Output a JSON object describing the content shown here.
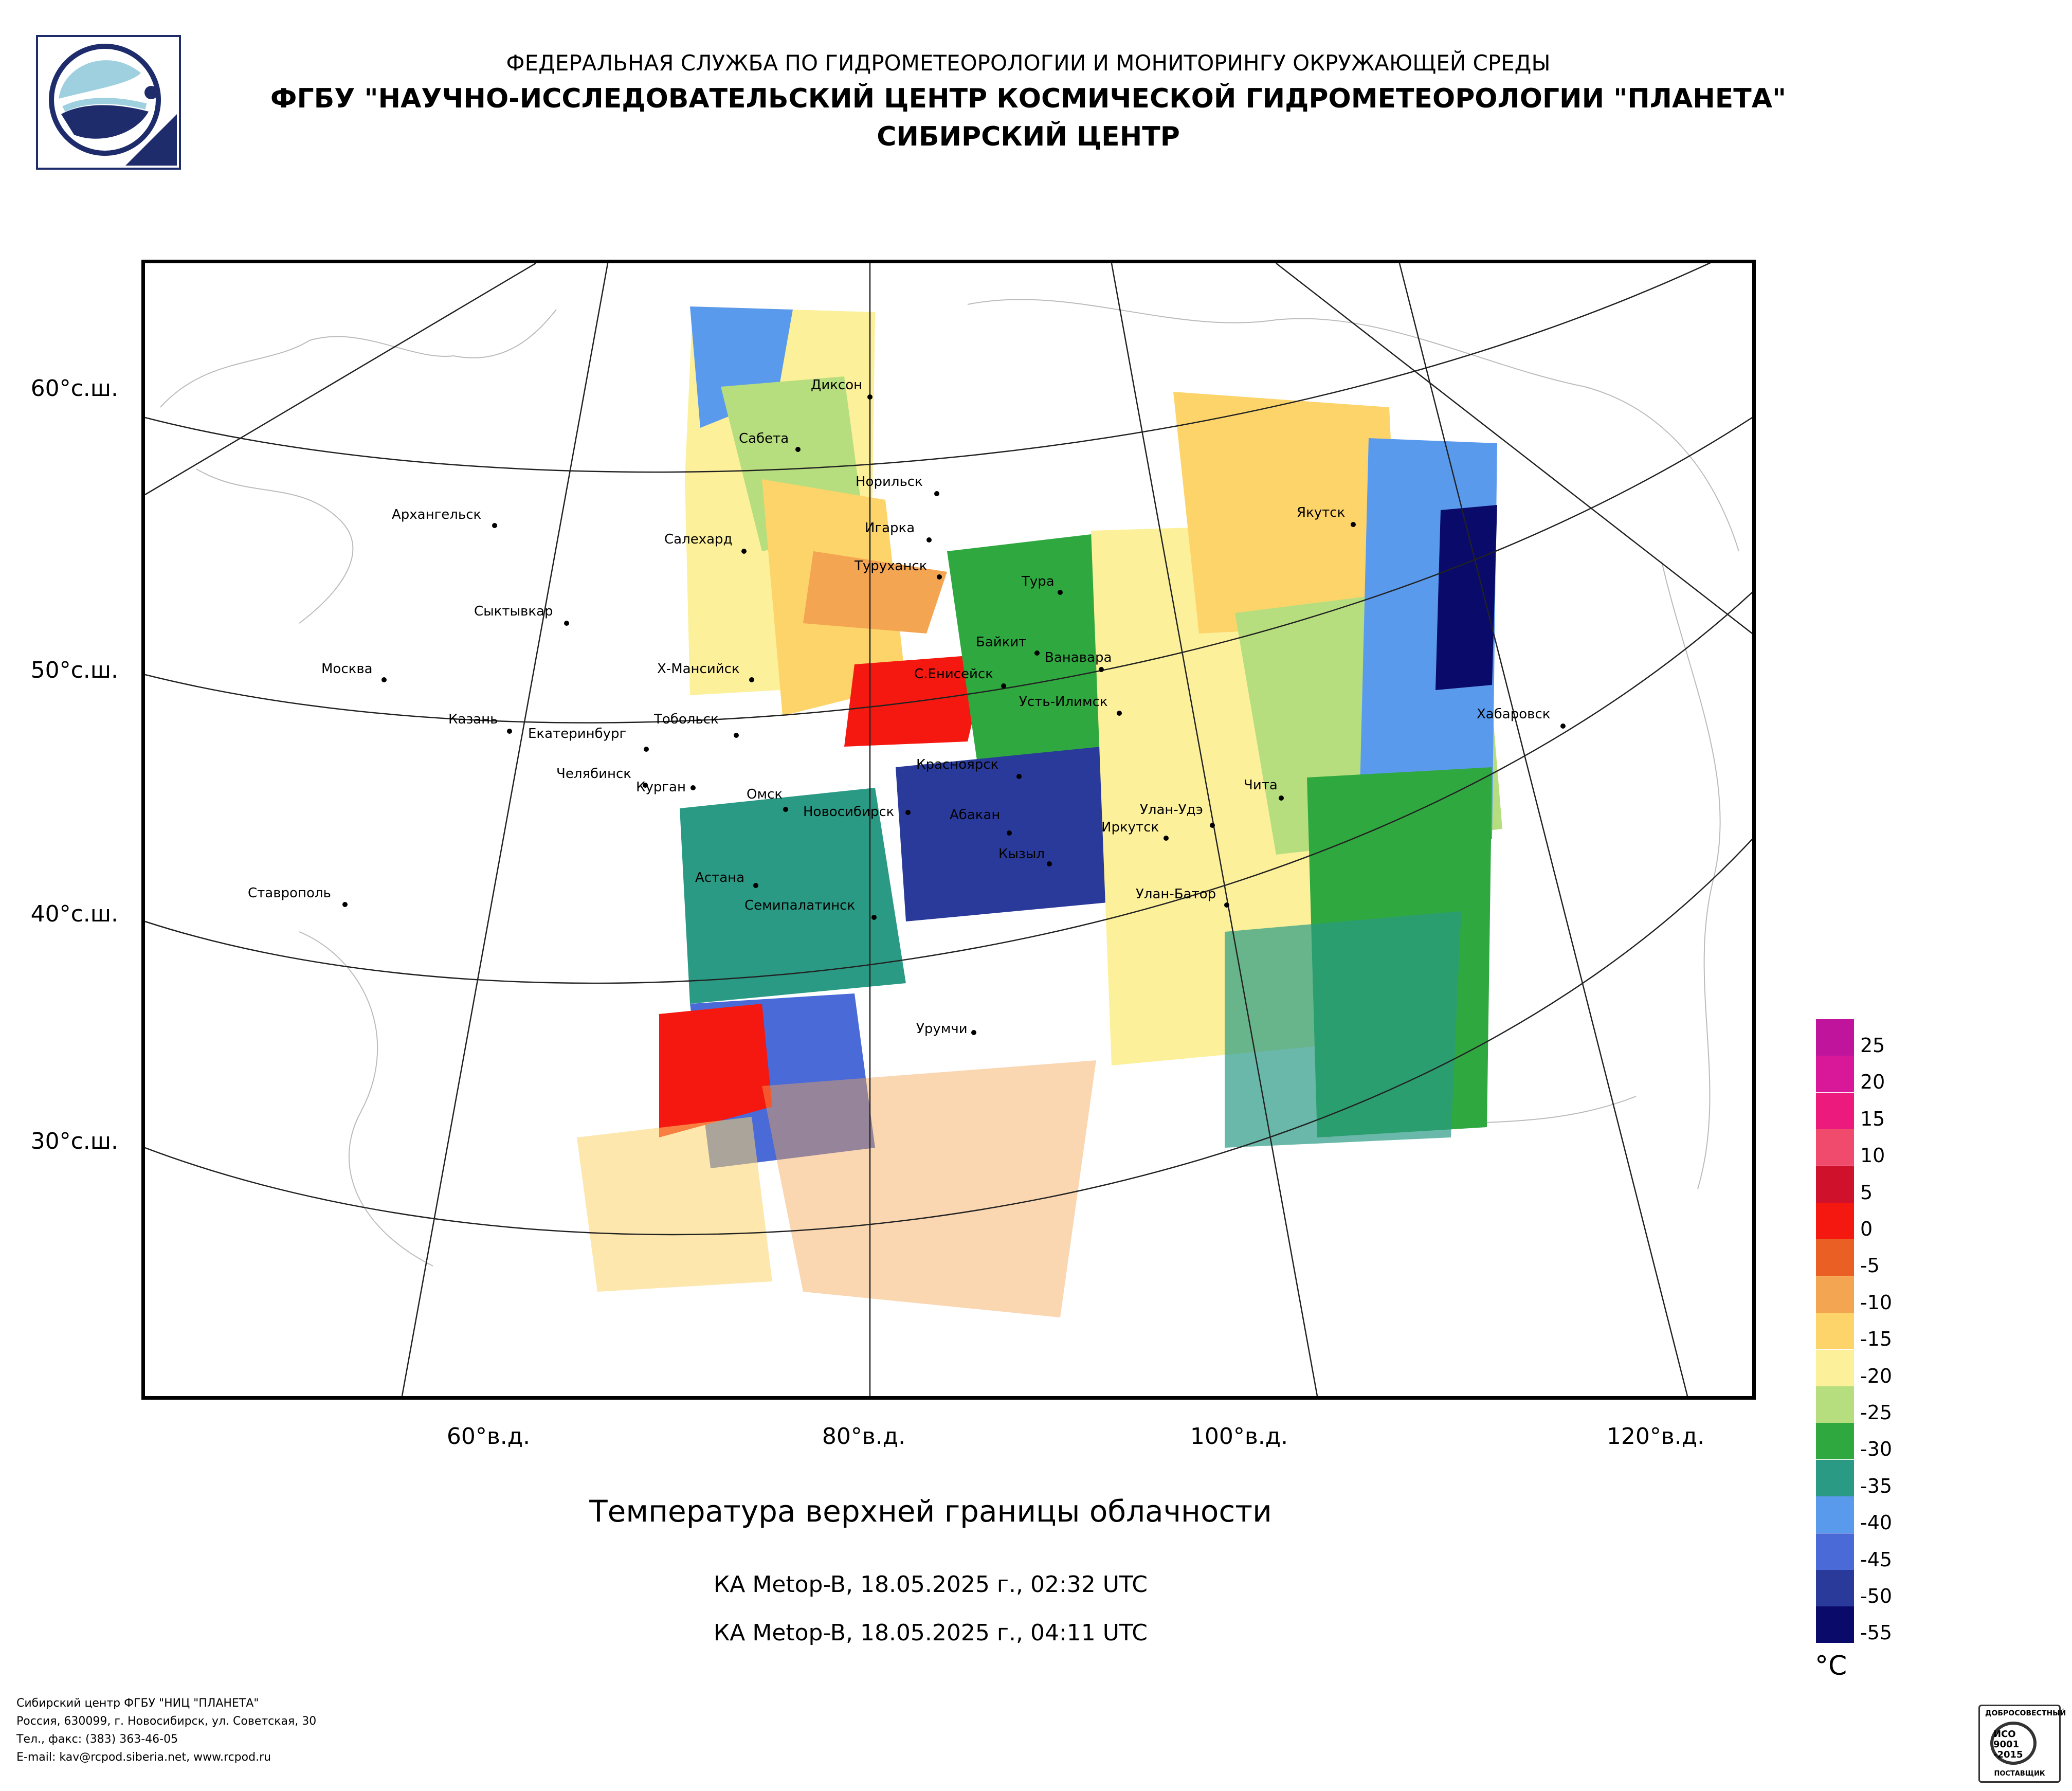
{
  "header": {
    "line1": "ФЕДЕРАЛЬНАЯ СЛУЖБА ПО ГИДРОМЕТЕОРОЛОГИИ И МОНИТОРИНГУ ОКРУЖАЮЩЕЙ СРЕДЫ",
    "line2": "ФГБУ \"НАУЧНО-ИССЛЕДОВАТЕЛЬСКИЙ ЦЕНТР КОСМИЧЕСКОЙ ГИДРОМЕТЕОРОЛОГИИ \"ПЛАНЕТА\"",
    "line3": "СИБИРСКИЙ ЦЕНТР"
  },
  "logo_icon": "planeta-logo-icon",
  "latitude_labels": [
    "60°с.ш.",
    "50°с.ш.",
    "40°с.ш.",
    "30°с.ш."
  ],
  "longitude_labels": [
    "60°в.д.",
    "80°в.д.",
    "100°в.д.",
    "120°в.д."
  ],
  "cities": [
    "Диксон",
    "Сабета",
    "Норильск",
    "Архангельск",
    "Салехард",
    "Игарка",
    "Туруханск",
    "Якутск",
    "Тура",
    "Сыктывкар",
    "Байкит",
    "Ванавара",
    "Х-Мансийск",
    "С.Енисейск",
    "Москва",
    "Усть-Илимск",
    "Хабаровск",
    "Казань",
    "Тобольск",
    "Екатеринбург",
    "Красноярск",
    "Челябинск",
    "Чита",
    "Курган",
    "Омск",
    "Новосибирск",
    "Абакан",
    "Улан-Удэ",
    "Иркутск",
    "Кызыл",
    "Ставрополь",
    "Астана",
    "Улан-Батор",
    "Семипалатинск",
    "Урумчи"
  ],
  "title": "Температура верхней границы облачности",
  "passes": [
    "КА Metop-B, 18.05.2025 г., 02:32 UTC",
    "КА Metop-B, 18.05.2025 г., 04:11 UTC"
  ],
  "legend": {
    "unit": "°C",
    "labels": [
      "25",
      "20",
      "15",
      "10",
      "5",
      "0",
      "-5",
      "-10",
      "-15",
      "-20",
      "-25",
      "-30",
      "-35",
      "-40",
      "-45",
      "-50",
      "-55"
    ],
    "colors": [
      "#c0149c",
      "#d81898",
      "#ec1a7c",
      "#f04a6c",
      "#d0112b",
      "#f41810",
      "#ea6024",
      "#f4a552",
      "#fcd46a",
      "#fcf09a",
      "#b6de7e",
      "#30a840",
      "#2a9a84",
      "#5a9aec",
      "#4a6ad8",
      "#2a3a9a",
      "#0a0a6a"
    ]
  },
  "footer": {
    "line1": "Сибирский центр ФГБУ \"НИЦ \"ПЛАНЕТА\"",
    "line2": "Россия, 630099, г. Новосибирск, ул. Советская, 30",
    "line3": "Тел., факс: (383) 363-46-05",
    "line4": "E-mail: kav@rcpod.siberia.net, www.rcpod.ru"
  },
  "iso_badge": {
    "arc_text": "ДОБРОСОВЕСТНЫЙ",
    "line1": "ИСО",
    "line2": "9001",
    "line3": "-2015",
    "bottom": "ПОСТАВЩИК"
  }
}
